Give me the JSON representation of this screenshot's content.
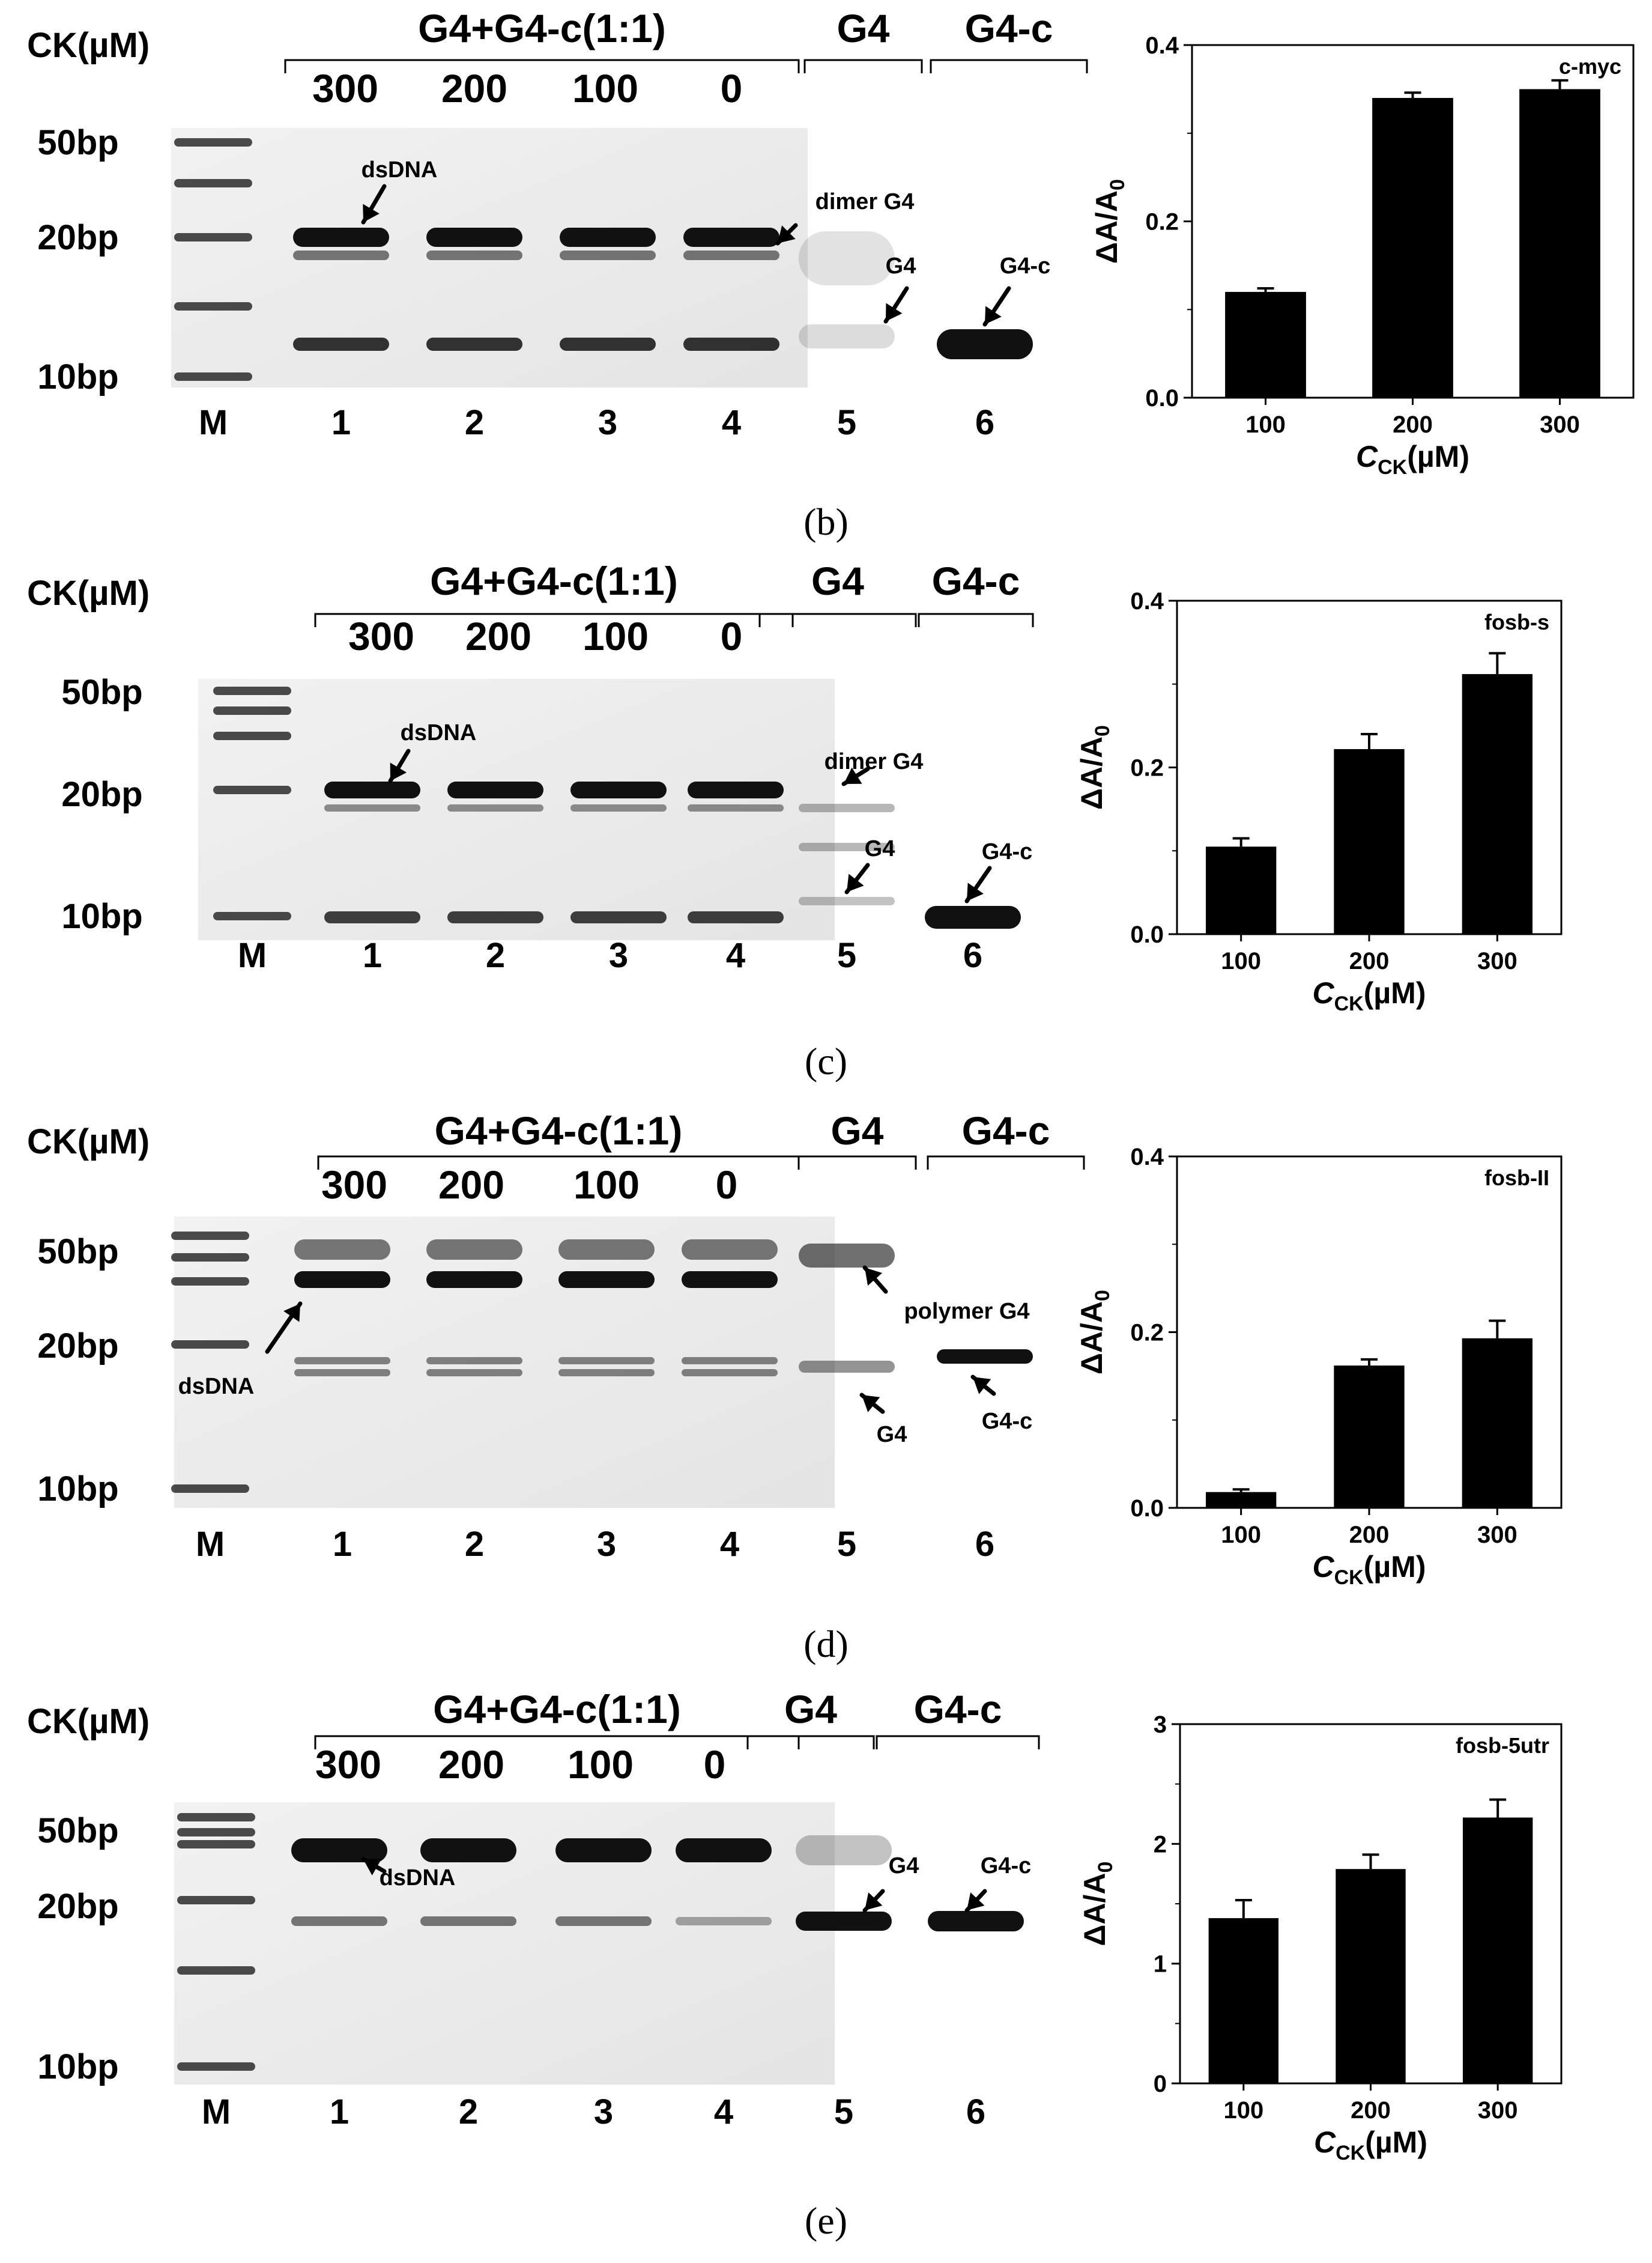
{
  "captions": [
    "(b)",
    "(c)",
    "(d)",
    "(e)"
  ],
  "panels": [
    {
      "group_label": "G4+G4-c(1:1)",
      "g4_label": "G4",
      "g4c_label": "G4-c",
      "ck_label": "CK(µM)",
      "ck_values": [
        "300",
        "200",
        "100",
        "0"
      ],
      "marker_labels": [
        "50bp",
        "20bp",
        "10bp"
      ],
      "lane_labels": [
        "M",
        "1",
        "2",
        "3",
        "4",
        "5",
        "6"
      ],
      "annotations": [
        "dsDNA",
        "dimer G4",
        "G4",
        "G4-c"
      ]
    },
    {
      "group_label": "G4+G4-c(1:1)",
      "g4_label": "G4",
      "g4c_label": "G4-c",
      "ck_label": "CK(µM)",
      "ck_values": [
        "300",
        "200",
        "100",
        "0"
      ],
      "marker_labels": [
        "50bp",
        "20bp",
        "10bp"
      ],
      "lane_labels": [
        "M",
        "1",
        "2",
        "3",
        "4",
        "5",
        "6"
      ],
      "annotations": [
        "dsDNA",
        "dimer G4",
        "G4",
        "G4-c"
      ]
    },
    {
      "group_label": "G4+G4-c(1:1)",
      "g4_label": "G4",
      "g4c_label": "G4-c",
      "ck_label": "CK(µM)",
      "ck_values": [
        "300",
        "200",
        "100",
        "0"
      ],
      "marker_labels": [
        "50bp",
        "20bp",
        "10bp"
      ],
      "lane_labels": [
        "M",
        "1",
        "2",
        "3",
        "4",
        "5",
        "6"
      ],
      "annotations": [
        "dsDNA",
        "polymer G4",
        "G4",
        "G4-c"
      ]
    },
    {
      "group_label": "G4+G4-c(1:1)",
      "g4_label": "G4",
      "g4c_label": "G4-c",
      "ck_label": "CK(µM)",
      "ck_values": [
        "300",
        "200",
        "100",
        "0"
      ],
      "marker_labels": [
        "50bp",
        "20bp",
        "10bp"
      ],
      "lane_labels": [
        "M",
        "1",
        "2",
        "3",
        "4",
        "5",
        "6"
      ],
      "annotations": [
        "dsDNA",
        "G4",
        "G4-c"
      ]
    }
  ],
  "chart_data": [
    {
      "type": "bar",
      "title": "c-myc",
      "categories": [
        "100",
        "200",
        "300"
      ],
      "values": [
        0.12,
        0.34,
        0.35
      ],
      "errors": [
        0.004,
        0.006,
        0.01
      ],
      "xlabel": "C",
      "xlabel_sub": "CK",
      "xlabel_unit": "(µM)",
      "ylabel": "ΔA/A",
      "ylabel_sub": "0",
      "ylim": [
        0,
        0.4
      ],
      "yticks": [
        "0.0",
        "0.2",
        "0.4"
      ],
      "bar_color": "#000000"
    },
    {
      "type": "bar",
      "title": "fosb-s",
      "categories": [
        "100",
        "200",
        "300"
      ],
      "values": [
        0.105,
        0.222,
        0.312
      ],
      "errors": [
        0.01,
        0.018,
        0.025
      ],
      "xlabel": "C",
      "xlabel_sub": "CK",
      "xlabel_unit": "(µM)",
      "ylabel": "ΔA/A",
      "ylabel_sub": "0",
      "ylim": [
        0,
        0.4
      ],
      "yticks": [
        "0.0",
        "0.2",
        "0.4"
      ],
      "bar_color": "#000000"
    },
    {
      "type": "bar",
      "title": "fosb-II",
      "categories": [
        "100",
        "200",
        "300"
      ],
      "values": [
        0.018,
        0.162,
        0.193
      ],
      "errors": [
        0.003,
        0.007,
        0.02
      ],
      "xlabel": "C",
      "xlabel_sub": "CK",
      "xlabel_unit": "(µM)",
      "ylabel": "ΔA/A",
      "ylabel_sub": "0",
      "ylim": [
        0,
        0.4
      ],
      "yticks": [
        "0.0",
        "0.2",
        "0.4"
      ],
      "bar_color": "#000000"
    },
    {
      "type": "bar",
      "title": "fosb-5utr",
      "categories": [
        "100",
        "200",
        "300"
      ],
      "values": [
        1.38,
        1.79,
        2.22
      ],
      "errors": [
        0.15,
        0.12,
        0.15
      ],
      "xlabel": "C",
      "xlabel_sub": "CK",
      "xlabel_unit": "(µM)",
      "ylabel": "ΔA/A",
      "ylabel_sub": "0",
      "ylim": [
        0,
        3
      ],
      "yticks": [
        "0",
        "1",
        "2",
        "3"
      ],
      "bar_color": "#000000"
    }
  ]
}
